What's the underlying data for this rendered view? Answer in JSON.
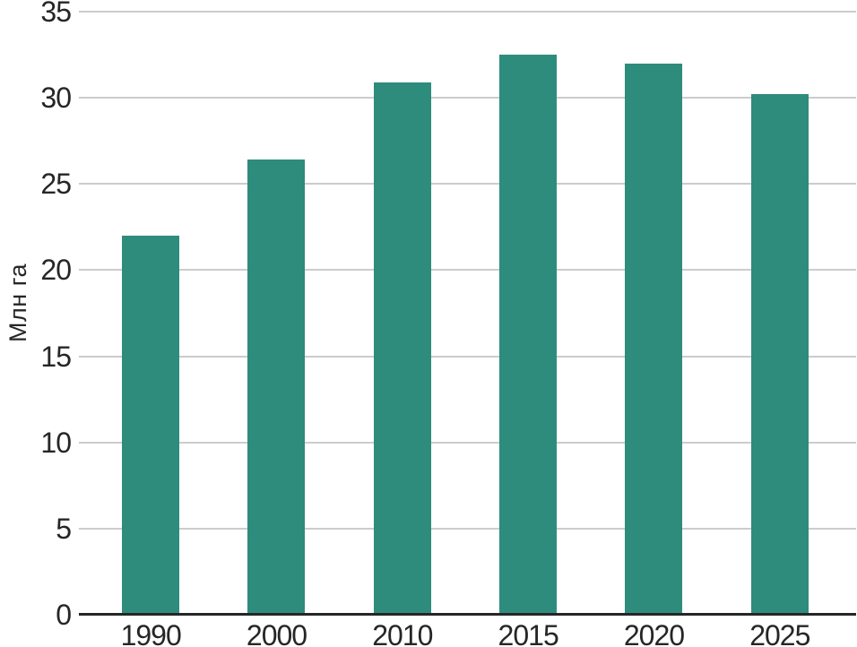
{
  "chart_data": {
    "type": "bar",
    "categories": [
      "1990",
      "2000",
      "2010",
      "2015",
      "2020",
      "2025"
    ],
    "values": [
      22.0,
      26.4,
      30.9,
      32.5,
      32.0,
      30.2
    ],
    "ylabel": "Млн га",
    "ylim": [
      0,
      35
    ],
    "yticks": [
      0,
      5,
      10,
      15,
      20,
      25,
      30,
      35
    ],
    "grid": "horizontal",
    "legend": "none",
    "bar_color": "#2e8c7c",
    "grid_color": "#cccccc",
    "axis_color": "#262626",
    "text_color": "#262626",
    "background": "#ffffff"
  }
}
